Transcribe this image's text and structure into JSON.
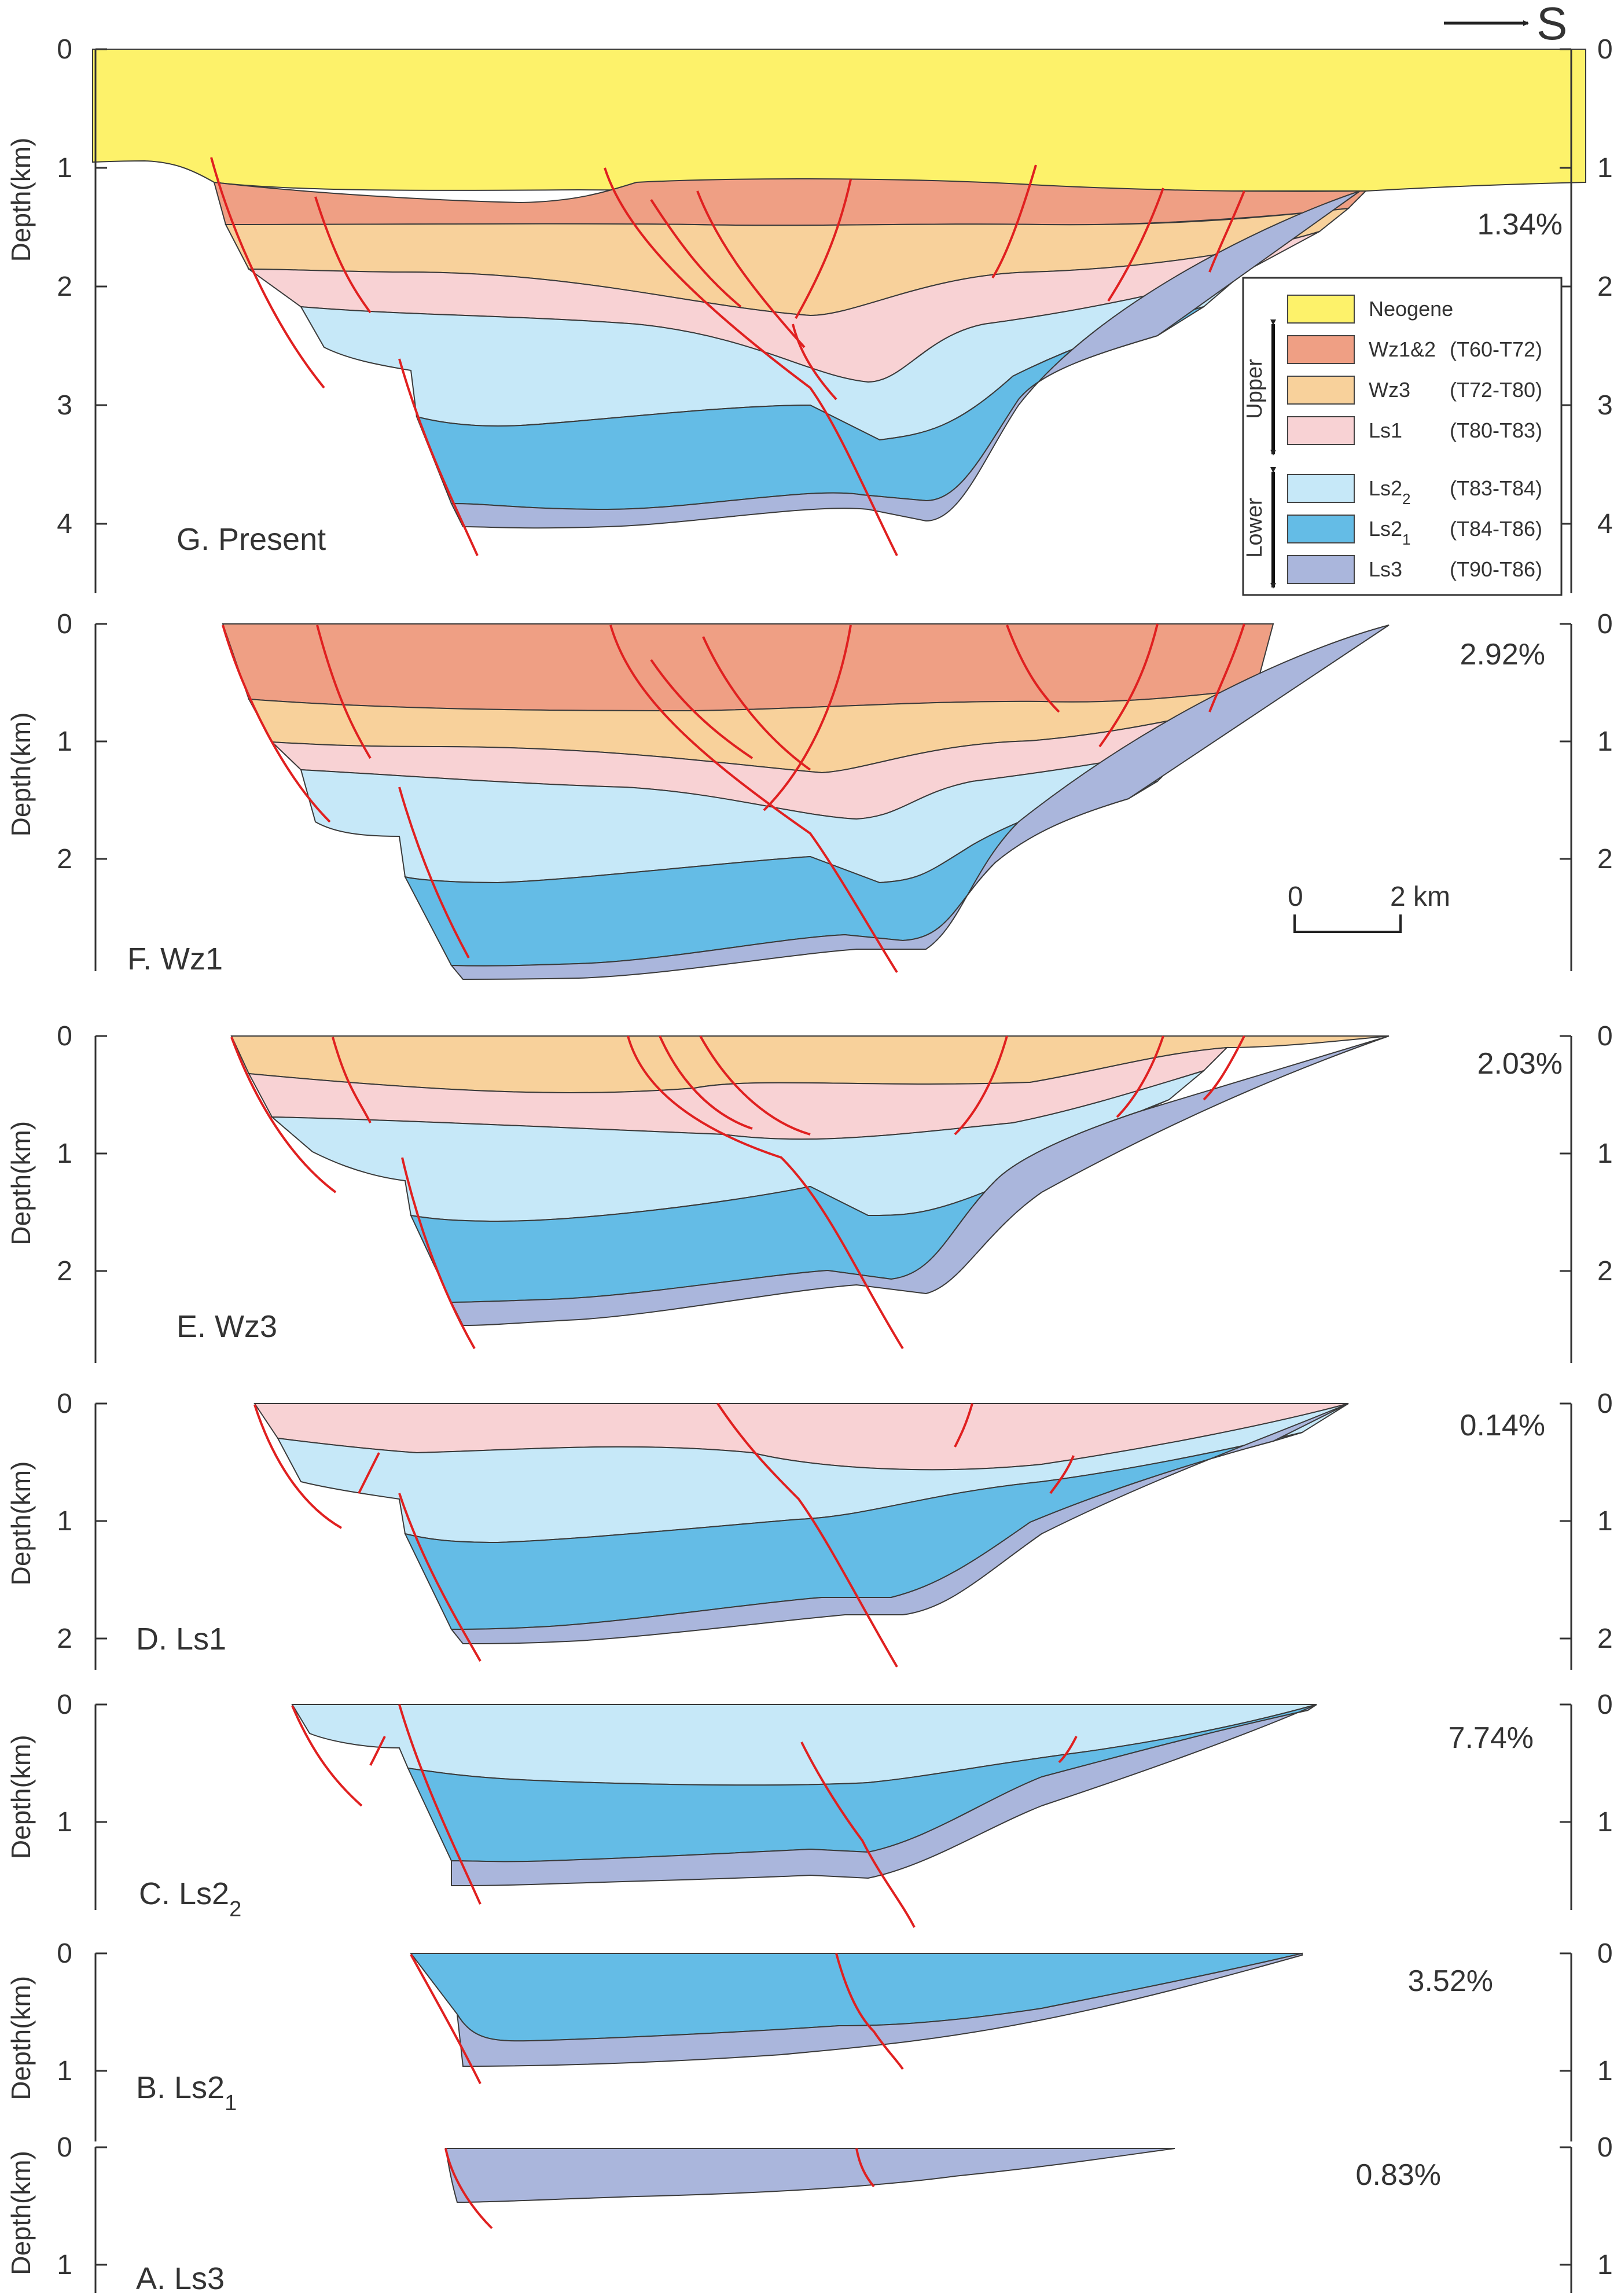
{
  "direction_label": "S",
  "y_axis_title": "Depth(km)",
  "panels": [
    {
      "id": "G",
      "title": "G. Present",
      "title_sub": "",
      "percent": "1.34%",
      "ticks": [
        "0",
        "1",
        "2",
        "3",
        "4"
      ]
    },
    {
      "id": "F",
      "title": "F. Wz1",
      "title_sub": "",
      "percent": "2.92%",
      "ticks": [
        "0",
        "1",
        "2"
      ]
    },
    {
      "id": "E",
      "title": "E. Wz3",
      "title_sub": "",
      "percent": "2.03%",
      "ticks": [
        "0",
        "1",
        "2"
      ]
    },
    {
      "id": "D",
      "title": "D. Ls1",
      "title_sub": "",
      "percent": "0.14%",
      "ticks": [
        "0",
        "1",
        "2"
      ]
    },
    {
      "id": "C",
      "title": "C. Ls2",
      "title_sub": "2",
      "percent": "7.74%",
      "ticks": [
        "0",
        "1"
      ]
    },
    {
      "id": "B",
      "title": "B.  Ls2",
      "title_sub": "1",
      "percent": "3.52%",
      "ticks": [
        "0",
        "1"
      ]
    },
    {
      "id": "A",
      "title": "A.  Ls3",
      "title_sub": "",
      "percent": "0.83%",
      "ticks": [
        "0",
        "1"
      ]
    }
  ],
  "scale_bar": {
    "start": "0",
    "end": "2 km"
  },
  "legend": {
    "group_upper": "Upper",
    "group_lower": "Lower",
    "units": [
      {
        "name": "Neogene",
        "name_sub": "",
        "range": "",
        "color": "#fdf26a"
      },
      {
        "name": "Wz1&2",
        "name_sub": "",
        "range": "(T60-T72)",
        "color": "#ef9f84"
      },
      {
        "name": "Wz3",
        "name_sub": "",
        "range": "(T72-T80)",
        "color": "#f8d19b"
      },
      {
        "name": "Ls1",
        "name_sub": "",
        "range": "(T80-T83)",
        "color": "#f8d2d4"
      },
      {
        "name": "Ls2",
        "name_sub": "2",
        "range": "(T83-T84)",
        "color": "#c6e8f8"
      },
      {
        "name": "Ls2",
        "name_sub": "1",
        "range": "(T84-T86)",
        "color": "#64bce6"
      },
      {
        "name": "Ls3",
        "name_sub": "",
        "range": "(T90-T86)",
        "color": "#aab6dc"
      }
    ]
  },
  "colors": {
    "fault": "#e02020",
    "boundary": "#3a3a3a",
    "axis": "#333333"
  }
}
